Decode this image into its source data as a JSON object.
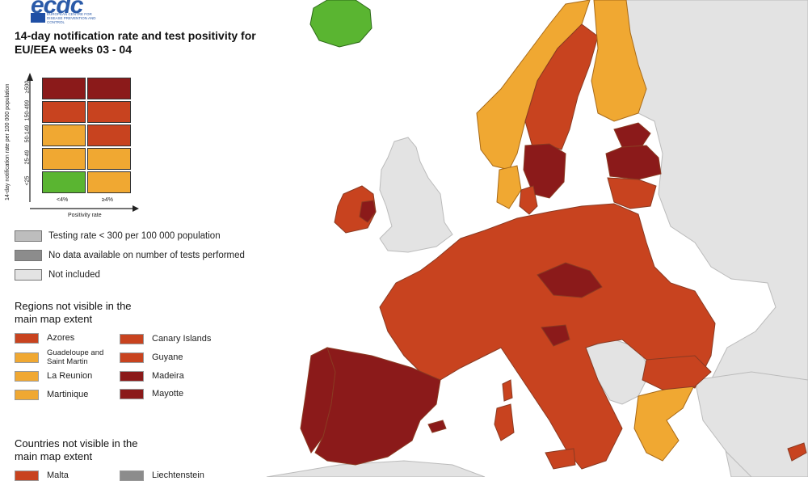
{
  "header": {
    "logo_text": "ecdc",
    "logo_subtitle": "EUROPEAN CENTRE FOR DISEASE PREVENTION AND CONTROL",
    "title": "14-day notification rate and test positivity for EU/EEA weeks 03 - 04"
  },
  "matrix": {
    "y_axis_title": "14-day notification rate per 100 000 population",
    "y_ticks": [
      "≥500",
      "150-499",
      "50-149",
      "25-49",
      "<25"
    ],
    "x_axis_title": "Positivity rate",
    "x_ticks": [
      "<4%",
      "≥4%"
    ],
    "cells": [
      [
        "#8b1a1a",
        "#8b1a1a"
      ],
      [
        "#c8431f",
        "#c8431f"
      ],
      [
        "#f0a832",
        "#c8431f"
      ],
      [
        "#f0a832",
        "#f0a832"
      ],
      [
        "#5ab531",
        "#f0a832"
      ]
    ]
  },
  "status_legend": [
    {
      "label": "Testing rate < 300 per 100 000 population",
      "color": "#bdbdbd"
    },
    {
      "label": "No data available on number of tests performed",
      "color": "#8c8c8c"
    },
    {
      "label": "Not included",
      "color": "#e3e3e3"
    }
  ],
  "regions_title": "Regions not visible in the main map extent",
  "regions": [
    {
      "label": "Azores",
      "color": "#c8431f"
    },
    {
      "label": "Guadeloupe and Saint Martin",
      "color": "#f0a832"
    },
    {
      "label": "La Reunion",
      "color": "#f0a832"
    },
    {
      "label": "Martinique",
      "color": "#f0a832"
    },
    {
      "label": "Canary Islands",
      "color": "#c8431f"
    },
    {
      "label": "Guyane",
      "color": "#c8431f"
    },
    {
      "label": "Madeira",
      "color": "#8b1a1a"
    },
    {
      "label": "Mayotte",
      "color": "#8b1a1a"
    }
  ],
  "countries_title": "Countries not visible in the main map extent",
  "countries": [
    {
      "label": "Malta",
      "color": "#c8431f"
    },
    {
      "label": "Liechtenstein",
      "color": "#8c8c8c"
    }
  ],
  "map_colors": {
    "sea": "#ffffff",
    "not_included": "#e3e3e3",
    "border": "#8a3a22",
    "dark_red": "#8b1a1a",
    "red": "#c8431f",
    "orange": "#f0a832",
    "green": "#5ab531",
    "grey": "#bdbdbd"
  }
}
